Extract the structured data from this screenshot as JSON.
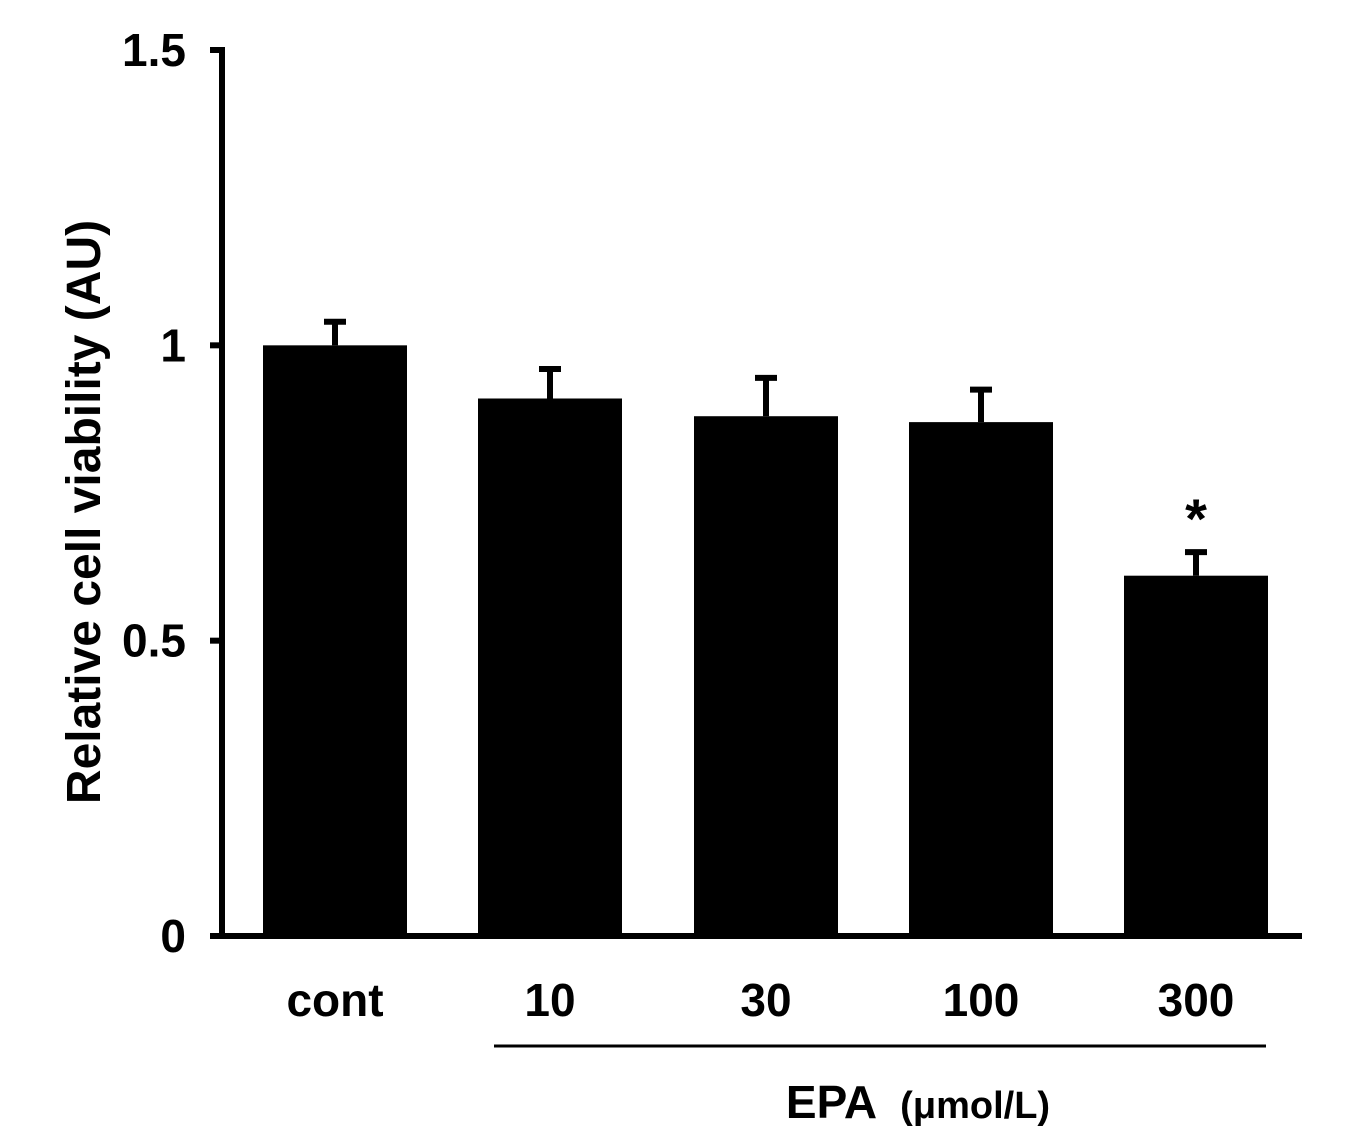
{
  "chart_data": {
    "type": "bar",
    "title": "",
    "xlabel": "",
    "ylabel": "Relative cell viability (AU)",
    "ylim": [
      0,
      1.5
    ],
    "yticks": [
      0,
      0.5,
      1,
      1.5
    ],
    "ytick_labels": [
      "0",
      "0.5",
      "1",
      "1.5"
    ],
    "categories": [
      "cont",
      "10",
      "30",
      "100",
      "300"
    ],
    "values": [
      1.0,
      0.91,
      0.88,
      0.87,
      0.61
    ],
    "errors": [
      0.04,
      0.05,
      0.065,
      0.055,
      0.04
    ],
    "annotations": [
      {
        "category": "300",
        "text": "*"
      }
    ],
    "group_label": {
      "categories": [
        "10",
        "30",
        "100",
        "300"
      ],
      "text": "EPA",
      "unit": "(μmol/L)"
    },
    "colors": {
      "bar": "#000000",
      "axis": "#000000"
    }
  }
}
